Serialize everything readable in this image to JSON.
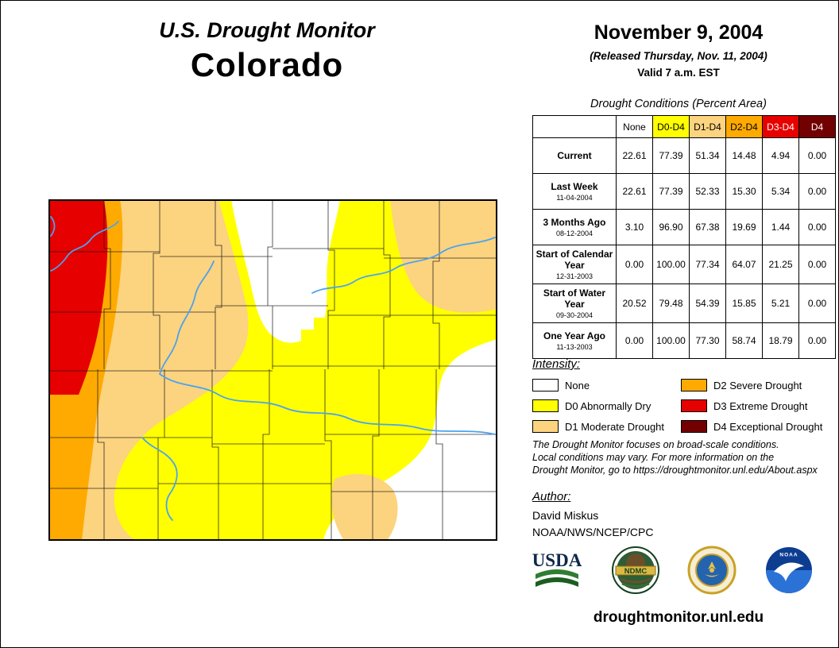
{
  "title_block": {
    "title": "U.S. Drought Monitor",
    "state": "Colorado"
  },
  "date_block": {
    "date": "November 9, 2004",
    "released": "(Released Thursday, Nov. 11, 2004)",
    "valid": "Valid 7 a.m. EST"
  },
  "chart_data": {
    "type": "table",
    "title": "Drought Conditions (Percent Area)",
    "columns": [
      "None",
      "D0-D4",
      "D1-D4",
      "D2-D4",
      "D3-D4",
      "D4"
    ],
    "header_colors": [
      "#FFFFFF",
      "#FFFF00",
      "#FCD37F",
      "#FFAA00",
      "#E60000",
      "#730000"
    ],
    "header_text_colors": [
      "#000000",
      "#000000",
      "#000000",
      "#000000",
      "#FFFFFF",
      "#FFFFFF"
    ],
    "rows": [
      {
        "label": "Current",
        "date": "",
        "values": [
          22.61,
          77.39,
          51.34,
          14.48,
          4.94,
          0
        ]
      },
      {
        "label": "Last Week",
        "date": "11-04-2004",
        "values": [
          22.61,
          77.39,
          52.33,
          15.3,
          5.34,
          0
        ]
      },
      {
        "label": "3 Months Ago",
        "date": "08-12-2004",
        "values": [
          3.1,
          96.9,
          67.38,
          19.69,
          1.44,
          0
        ]
      },
      {
        "label": "Start of Calendar Year",
        "date": "12-31-2003",
        "values": [
          0,
          100,
          77.34,
          64.07,
          21.25,
          0
        ]
      },
      {
        "label": "Start of Water Year",
        "date": "09-30-2004",
        "values": [
          20.52,
          79.48,
          54.39,
          15.85,
          5.21,
          0
        ]
      },
      {
        "label": "One Year Ago",
        "date": "11-13-2003",
        "values": [
          0,
          100,
          77.3,
          58.74,
          18.79,
          0
        ]
      }
    ]
  },
  "legend": {
    "title": "Intensity:",
    "items": [
      {
        "code": "none",
        "label": "None",
        "color": "#FFFFFF"
      },
      {
        "code": "d0",
        "label": "D0 Abnormally Dry",
        "color": "#FFFF00"
      },
      {
        "code": "d1",
        "label": "D1 Moderate Drought",
        "color": "#FCD37F"
      },
      {
        "code": "d2",
        "label": "D2 Severe Drought",
        "color": "#FFAA00"
      },
      {
        "code": "d3",
        "label": "D3 Extreme Drought",
        "color": "#E60000"
      },
      {
        "code": "d4",
        "label": "D4 Exceptional Drought",
        "color": "#730000"
      }
    ]
  },
  "map": {
    "region": "Colorado",
    "river_color": "#4AA3F0"
  },
  "disclaimer": {
    "lines": [
      "The Drought Monitor focuses on broad-scale conditions.",
      "Local conditions may vary. For more information on the",
      "Drought Monitor, go to https://droughtmonitor.unl.edu/About.aspx"
    ]
  },
  "author": {
    "title": "Author:",
    "name": "David Miskus",
    "org": "NOAA/NWS/NCEP/CPC"
  },
  "logos": [
    {
      "id": "usda",
      "label": "USDA"
    },
    {
      "id": "ndmc",
      "label": "NDMC"
    },
    {
      "id": "commerce",
      "label": ""
    },
    {
      "id": "noaa",
      "label": "NOAA"
    }
  ],
  "footer": {
    "url": "droughtmonitor.unl.edu"
  }
}
